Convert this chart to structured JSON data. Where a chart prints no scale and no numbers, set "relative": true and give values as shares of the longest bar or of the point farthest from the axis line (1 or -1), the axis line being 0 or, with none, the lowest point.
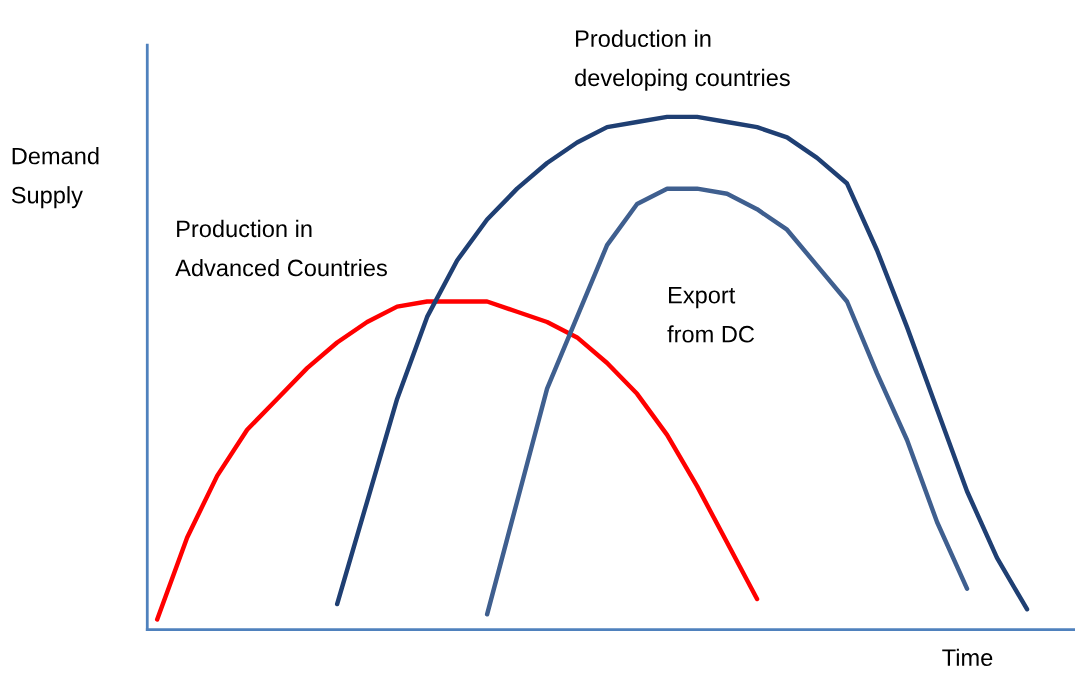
{
  "chart_data": {
    "type": "line",
    "relative": true,
    "xlabel": "Time",
    "ylabel": "Demand\nSupply",
    "legend": false,
    "marker": "none",
    "line_style": "solid",
    "categories": [
      null,
      null,
      null,
      null,
      null,
      null,
      null,
      null,
      null,
      null,
      null,
      null,
      null,
      null,
      null,
      null,
      null,
      null,
      null,
      null,
      null,
      null,
      null,
      null,
      null,
      null,
      null,
      null,
      null,
      null
    ],
    "series": [
      {
        "name": "Production in\nAdvanced Countries",
        "color": "#ff0000",
        "values": [
          0.02,
          0.18,
          0.3,
          0.39,
          0.45,
          0.51,
          0.56,
          0.6,
          0.63,
          0.64,
          0.64,
          0.64,
          0.62,
          0.6,
          0.57,
          0.52,
          0.46,
          0.38,
          0.28,
          0.17,
          0.06,
          null,
          null,
          null,
          null,
          null,
          null,
          null,
          null,
          null
        ]
      },
      {
        "name": "Production in\ndeveloping countries",
        "color": "#1f3f73",
        "values": [
          null,
          null,
          null,
          null,
          null,
          null,
          0.05,
          0.25,
          0.45,
          0.61,
          0.72,
          0.8,
          0.86,
          0.91,
          0.95,
          0.98,
          0.99,
          1.0,
          1.0,
          0.99,
          0.98,
          0.96,
          0.92,
          0.87,
          0.74,
          0.59,
          0.43,
          0.27,
          0.14,
          0.04
        ]
      },
      {
        "name": "Export\nfrom DC",
        "color": "#3f5f8f",
        "values": [
          null,
          null,
          null,
          null,
          null,
          null,
          null,
          null,
          null,
          null,
          null,
          0.03,
          0.25,
          0.47,
          0.61,
          0.75,
          0.83,
          0.86,
          0.86,
          0.85,
          0.82,
          0.78,
          0.71,
          0.64,
          0.5,
          0.37,
          0.21,
          0.08,
          null,
          null
        ]
      }
    ]
  }
}
